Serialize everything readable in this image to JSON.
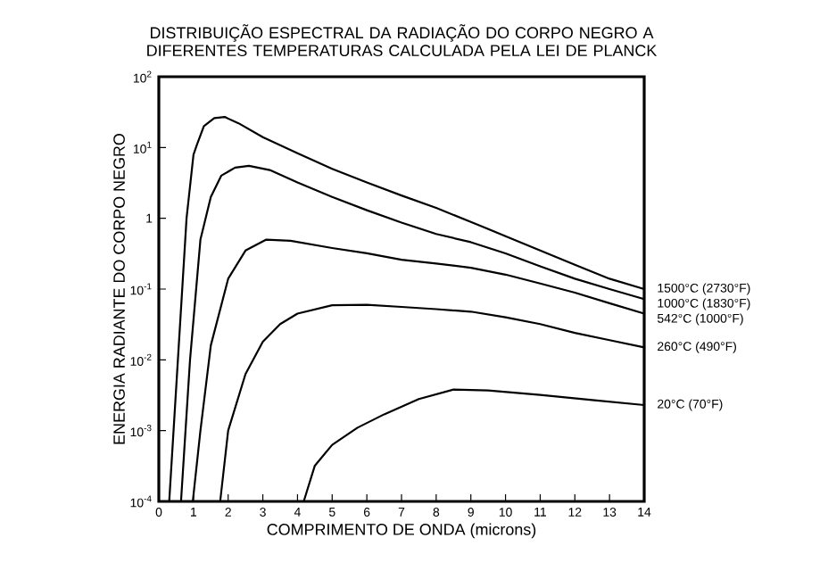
{
  "chart_data": {
    "type": "line",
    "title": "DISTRIBUIÇÃO ESPECTRAL DA RADIAÇÃO DO CORPO NEGRO A DIFERENTES TEMPERATURAS CALCULADA PELA LEI DE PLANCK",
    "xlabel": "COMPRIMENTO DE ONDA (microns)",
    "ylabel": "ENERGIA RADIANTE DO CORPO NEGRO",
    "log": "y",
    "grid": false,
    "marker": "none",
    "line_style": "solid",
    "xlim": [
      0,
      14
    ],
    "xticks": [
      0,
      1,
      2,
      3,
      4,
      5,
      6,
      7,
      8,
      9,
      10,
      11,
      12,
      13,
      14
    ],
    "ylim": [
      0.0001,
      100
    ],
    "yticks": [
      {
        "value": 100,
        "label": "10$^{2}$"
      },
      {
        "value": 10,
        "label": "10$^{1}$"
      },
      1,
      {
        "value": 0.1,
        "label": "10$^{-1}$"
      },
      {
        "value": 0.01,
        "label": "10$^{-2}$"
      },
      {
        "value": 0.001,
        "label": "10$^{-3}$"
      },
      {
        "value": 0.0001,
        "label": "10$^{-4}$"
      }
    ],
    "series": [
      {
        "name": "1500°C (2730°F)",
        "color": "#000000",
        "x": [
          0.3,
          0.55,
          0.8,
          1.0,
          1.1,
          1.3,
          1.6,
          1.9,
          2.3,
          3,
          4,
          5,
          6,
          7,
          8,
          9,
          10,
          11,
          12,
          13,
          14
        ],
        "values": [
          0.0001,
          0.01,
          1,
          7.9,
          11,
          20,
          26,
          27,
          22,
          14,
          8.3,
          5.0,
          3.2,
          2.1,
          1.4,
          0.89,
          0.56,
          0.35,
          0.22,
          0.14,
          0.1
        ]
      },
      {
        "name": "1000°C (1830°F)",
        "color": "#000000",
        "x": [
          0.64,
          0.9,
          1.2,
          1.5,
          1.8,
          2.2,
          2.6,
          3.2,
          4,
          5,
          6,
          7,
          8,
          9,
          10,
          11,
          12,
          13,
          14
        ],
        "values": [
          0.0001,
          0.01,
          0.5,
          2.0,
          4.0,
          5.2,
          5.5,
          4.8,
          3.2,
          2.0,
          1.3,
          0.87,
          0.6,
          0.46,
          0.32,
          0.21,
          0.14,
          0.1,
          0.072
        ]
      },
      {
        "name": "542°C (1000°F)",
        "color": "#000000",
        "x": [
          0.98,
          1.2,
          1.5,
          2.0,
          2.5,
          3.1,
          3.8,
          5,
          6,
          7,
          8,
          9,
          10,
          11,
          12,
          13,
          14
        ],
        "values": [
          0.0001,
          0.001,
          0.016,
          0.14,
          0.35,
          0.5,
          0.48,
          0.38,
          0.32,
          0.26,
          0.23,
          0.2,
          0.16,
          0.12,
          0.089,
          0.063,
          0.045
        ]
      },
      {
        "name": "260°C (490°F)",
        "color": "#000000",
        "x": [
          1.77,
          2.0,
          2.5,
          3,
          3.5,
          4,
          5,
          6,
          7,
          8,
          9,
          10,
          11,
          12,
          13,
          14
        ],
        "values": [
          0.0001,
          0.001,
          0.0063,
          0.018,
          0.032,
          0.045,
          0.059,
          0.06,
          0.056,
          0.052,
          0.048,
          0.04,
          0.032,
          0.024,
          0.019,
          0.015
        ]
      },
      {
        "name": "20°C (70°F)",
        "color": "#000000",
        "x": [
          4.18,
          4.5,
          5,
          5.73,
          6.5,
          7.5,
          8.5,
          9.5,
          11,
          12.5,
          14
        ],
        "values": [
          0.0001,
          0.00032,
          0.00063,
          0.0011,
          0.0017,
          0.0028,
          0.0038,
          0.0037,
          0.0032,
          0.0027,
          0.0023
        ]
      }
    ]
  }
}
